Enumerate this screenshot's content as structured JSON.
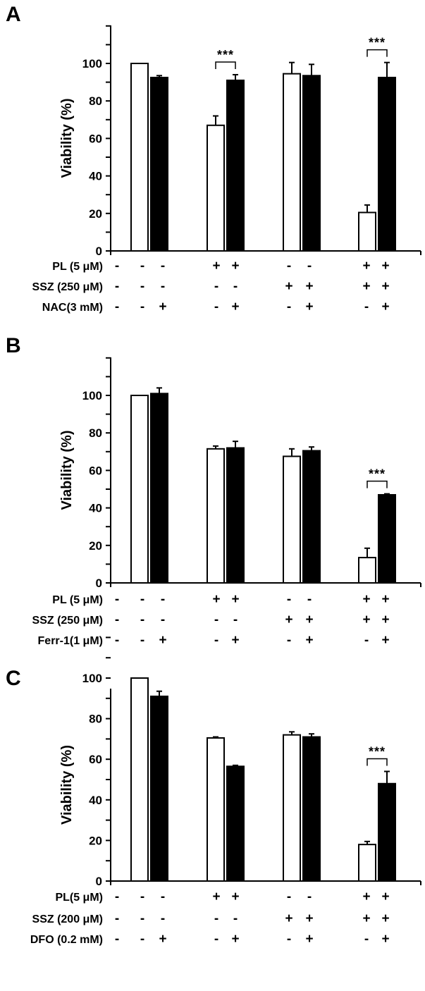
{
  "chart_data": [
    {
      "type": "bar",
      "panel": "A",
      "ylabel": "Viability (%)",
      "ylim": [
        0,
        120
      ],
      "yticks": [
        0,
        20,
        40,
        60,
        80,
        100
      ],
      "groups": [
        {
          "open": 100,
          "open_err": 0,
          "filled": 92.5,
          "filled_err": 1
        },
        {
          "open": 67,
          "open_err": 5,
          "filled": 91,
          "filled_err": 3
        },
        {
          "open": 94.5,
          "open_err": 6,
          "filled": 93.5,
          "filled_err": 6
        },
        {
          "open": 20.5,
          "open_err": 4,
          "filled": 92.5,
          "filled_err": 8
        }
      ],
      "significance": [
        {
          "group": 1,
          "label": "***"
        },
        {
          "group": 3,
          "label": "***"
        }
      ],
      "conditions": [
        {
          "label": "PL (5 μM)",
          "signs": [
            "-",
            "-",
            "+",
            "+",
            "-",
            "-",
            "+",
            "+"
          ]
        },
        {
          "label": "SSZ (250 μM)",
          "signs": [
            "-",
            "-",
            "-",
            "-",
            "+",
            "+",
            "+",
            "+"
          ]
        },
        {
          "label": "NAC(3 mM)",
          "signs": [
            "-",
            "+",
            "-",
            "+",
            "-",
            "+",
            "-",
            "+"
          ]
        }
      ]
    },
    {
      "type": "bar",
      "panel": "B",
      "ylabel": "Viability (%)",
      "ylim": [
        0,
        120
      ],
      "yticks": [
        0,
        20,
        40,
        60,
        80,
        100
      ],
      "groups": [
        {
          "open": 100,
          "open_err": 0,
          "filled": 101,
          "filled_err": 3
        },
        {
          "open": 71.5,
          "open_err": 1.5,
          "filled": 72,
          "filled_err": 3.5
        },
        {
          "open": 67.5,
          "open_err": 4,
          "filled": 70.5,
          "filled_err": 2
        },
        {
          "open": 13.5,
          "open_err": 5,
          "filled": 47,
          "filled_err": 0.5
        }
      ],
      "significance": [
        {
          "group": 3,
          "label": "***"
        }
      ],
      "conditions": [
        {
          "label": "PL (5 μM)",
          "signs": [
            "-",
            "-",
            "+",
            "+",
            "-",
            "-",
            "+",
            "+"
          ]
        },
        {
          "label": "SSZ (250 μM)",
          "signs": [
            "-",
            "-",
            "-",
            "-",
            "+",
            "+",
            "+",
            "+"
          ]
        },
        {
          "label": "Ferr-1(1 μM)",
          "signs": [
            "-",
            "+",
            "-",
            "+",
            "-",
            "+",
            "-",
            "+"
          ]
        }
      ]
    },
    {
      "type": "bar",
      "panel": "C",
      "ylabel": "Viability (%)",
      "ylim": [
        0,
        120
      ],
      "yticks": [
        0,
        20,
        40,
        60,
        80,
        100
      ],
      "groups": [
        {
          "open": 100,
          "open_err": 0,
          "filled": 91,
          "filled_err": 2.5
        },
        {
          "open": 70.5,
          "open_err": 0.5,
          "filled": 56.5,
          "filled_err": 0.5
        },
        {
          "open": 72,
          "open_err": 1.5,
          "filled": 71,
          "filled_err": 1.5
        },
        {
          "open": 18,
          "open_err": 1.5,
          "filled": 48,
          "filled_err": 6
        }
      ],
      "significance": [
        {
          "group": 3,
          "label": "***"
        }
      ],
      "conditions": [
        {
          "label": "PL(5 μM)",
          "signs": [
            "-",
            "-",
            "+",
            "+",
            "-",
            "-",
            "+",
            "+"
          ]
        },
        {
          "label": "SSZ (200 μM)",
          "signs": [
            "-",
            "-",
            "-",
            "-",
            "+",
            "+",
            "+",
            "+"
          ]
        },
        {
          "label": "DFO (0.2 mM)",
          "signs": [
            "-",
            "+",
            "-",
            "+",
            "-",
            "+",
            "-",
            "+"
          ]
        }
      ]
    }
  ]
}
